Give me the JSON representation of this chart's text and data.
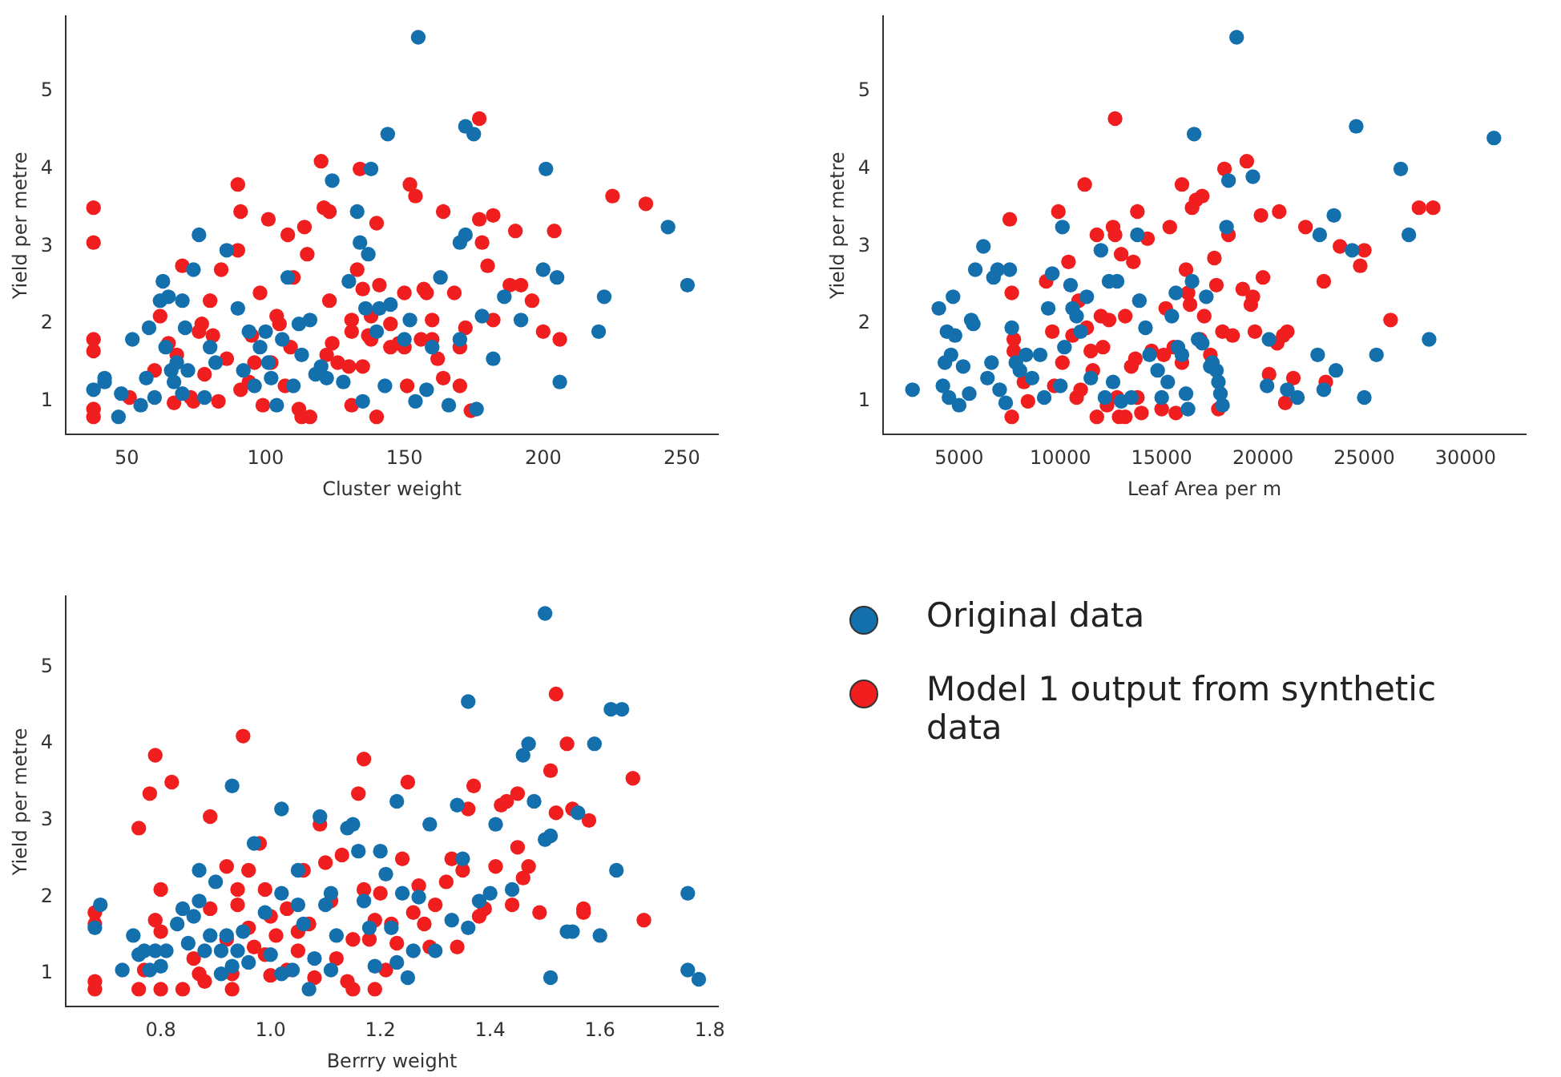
{
  "chart_data": [
    {
      "type": "scatter",
      "xlabel": "Cluster weight",
      "ylabel": "Yield per metre",
      "xlim": [
        28,
        263
      ],
      "xticks": [
        50,
        100,
        150,
        200,
        250
      ],
      "ylim": [
        0.57,
        5.97
      ],
      "yticks": [
        1,
        2,
        3,
        4,
        5
      ],
      "grid": false,
      "marker": "circle",
      "series": [
        {
          "color": "#1470ad",
          "x": [
            38,
            42,
            42,
            47,
            48,
            52,
            55,
            57,
            58,
            60,
            62,
            63,
            64,
            65,
            66,
            67,
            68,
            70,
            70,
            71,
            72,
            74,
            76,
            78,
            80,
            82,
            86,
            90,
            92,
            94,
            96,
            98,
            100,
            101,
            102,
            104,
            106,
            108,
            110,
            112,
            113,
            116,
            118,
            120,
            122,
            124,
            128,
            130,
            133,
            134,
            135,
            136,
            138,
            137,
            140,
            141,
            143,
            144,
            145,
            150,
            152,
            154,
            155,
            158,
            160,
            163,
            166,
            170,
            170,
            172,
            172,
            175,
            176,
            178,
            182,
            186,
            192,
            200,
            201,
            205,
            206,
            220,
            222,
            245,
            252
          ],
          "values": [
            1.15,
            1.3,
            1.25,
            0.8,
            1.1,
            1.8,
            0.95,
            1.3,
            1.95,
            1.05,
            2.3,
            2.55,
            1.7,
            2.35,
            1.4,
            1.25,
            1.5,
            1.1,
            2.3,
            1.95,
            1.4,
            2.7,
            3.15,
            1.05,
            1.7,
            1.5,
            2.95,
            2.2,
            1.4,
            1.9,
            1.2,
            1.7,
            1.9,
            1.5,
            1.3,
            0.95,
            1.8,
            2.6,
            1.2,
            2.0,
            1.6,
            2.05,
            1.35,
            1.45,
            1.3,
            3.85,
            1.25,
            2.55,
            3.45,
            3.05,
            1.0,
            2.2,
            4.0,
            2.9,
            1.9,
            2.2,
            1.2,
            4.45,
            2.25,
            1.8,
            2.05,
            1.0,
            5.7,
            1.15,
            1.7,
            2.6,
            0.95,
            3.05,
            1.8,
            3.15,
            4.55,
            4.45,
            0.9,
            2.1,
            1.55,
            2.35,
            2.05,
            2.7,
            4.0,
            2.6,
            1.25,
            1.9,
            2.35,
            3.25,
            2.5
          ]
        },
        {
          "color": "#f01e1e",
          "x": [
            38,
            38,
            38,
            38,
            38,
            38,
            51,
            60,
            62,
            65,
            67,
            68,
            70,
            73,
            74,
            76,
            77,
            78,
            80,
            81,
            83,
            84,
            86,
            90,
            91,
            90,
            91,
            94,
            95,
            96,
            98,
            99,
            101,
            102,
            104,
            105,
            107,
            108,
            110,
            109,
            112,
            113,
            114,
            115,
            116,
            120,
            121,
            122,
            123,
            123,
            124,
            126,
            130,
            131,
            131,
            131,
            133,
            134,
            135,
            135,
            137,
            138,
            140,
            138,
            140,
            141,
            145,
            145,
            148,
            150,
            150,
            151,
            152,
            154,
            156,
            157,
            158,
            160,
            160,
            162,
            164,
            164,
            168,
            170,
            170,
            172,
            174,
            177,
            177,
            178,
            180,
            182,
            182,
            188,
            190,
            192,
            196,
            200,
            204,
            206,
            225,
            237
          ],
          "values": [
            3.5,
            3.05,
            1.8,
            1.65,
            0.9,
            0.8,
            1.05,
            1.4,
            2.1,
            1.75,
            0.98,
            1.6,
            2.75,
            1.05,
            1.0,
            1.9,
            2.0,
            1.35,
            2.3,
            1.85,
            1.0,
            2.7,
            1.55,
            3.8,
            3.45,
            2.95,
            1.15,
            1.25,
            1.85,
            1.5,
            2.4,
            0.95,
            3.35,
            1.5,
            2.1,
            2.0,
            1.2,
            3.15,
            2.6,
            1.7,
            0.9,
            0.8,
            3.25,
            2.9,
            0.8,
            4.1,
            3.5,
            1.6,
            2.3,
            3.45,
            1.75,
            1.5,
            1.45,
            0.95,
            2.05,
            1.9,
            2.7,
            4.0,
            2.45,
            1.45,
            1.85,
            1.8,
            0.8,
            2.1,
            3.3,
            2.5,
            1.7,
            2.0,
            1.75,
            2.4,
            1.7,
            1.2,
            3.8,
            3.65,
            1.8,
            2.45,
            2.4,
            2.05,
            1.8,
            1.55,
            3.45,
            1.3,
            2.4,
            1.7,
            1.2,
            1.95,
            0.88,
            4.65,
            3.35,
            3.05,
            2.75,
            2.05,
            3.4,
            2.5,
            3.2,
            2.5,
            2.3,
            1.9,
            3.2,
            1.8,
            3.65,
            3.55
          ]
        }
      ]
    },
    {
      "type": "scatter",
      "xlabel": "Leaf Area per m",
      "ylabel": "Yield per metre",
      "xlim": [
        1250,
        32970
      ],
      "xticks": [
        5000,
        10000,
        15000,
        20000,
        25000,
        30000
      ],
      "ylim": [
        0.57,
        5.97
      ],
      "yticks": [
        1,
        2,
        3,
        4,
        5
      ],
      "grid": false,
      "marker": "circle",
      "series": [
        {
          "color": "#1470ad",
          "x": [
            2700,
            4000,
            4200,
            4300,
            4400,
            4500,
            4600,
            4700,
            4800,
            5000,
            5200,
            5500,
            5600,
            5700,
            5800,
            6200,
            6400,
            6600,
            6700,
            6900,
            7000,
            7300,
            7500,
            7600,
            7800,
            8000,
            8300,
            8600,
            9000,
            9200,
            9400,
            9600,
            10000,
            10100,
            10200,
            10500,
            10600,
            10800,
            11000,
            11300,
            11500,
            12000,
            12200,
            12400,
            12600,
            12800,
            13000,
            13500,
            13800,
            13900,
            14200,
            14400,
            14800,
            15000,
            15300,
            15500,
            15700,
            15800,
            16000,
            16200,
            16300,
            16500,
            16600,
            16800,
            17000,
            17200,
            17400,
            17500,
            17700,
            17800,
            17900,
            18000,
            18200,
            18300,
            18700,
            19500,
            20200,
            20300,
            21200,
            21700,
            22700,
            22800,
            23000,
            23500,
            23600,
            24400,
            24600,
            25000,
            25600,
            26800,
            27200,
            28200,
            31400
          ],
          "values": [
            1.15,
            2.2,
            1.2,
            1.5,
            1.9,
            1.05,
            1.6,
            2.35,
            1.85,
            0.95,
            1.45,
            1.1,
            2.05,
            2.0,
            2.7,
            3.0,
            1.3,
            1.5,
            2.6,
            2.7,
            1.15,
            0.98,
            2.7,
            1.95,
            1.5,
            1.4,
            1.6,
            1.3,
            1.6,
            1.05,
            2.2,
            2.65,
            1.2,
            3.25,
            1.7,
            2.5,
            2.2,
            2.1,
            1.9,
            2.35,
            1.3,
            2.95,
            1.05,
            2.55,
            1.25,
            2.55,
            1.0,
            1.05,
            3.15,
            2.3,
            1.95,
            1.6,
            1.4,
            1.05,
            1.25,
            2.1,
            2.4,
            1.7,
            1.6,
            1.1,
            0.9,
            2.55,
            4.45,
            1.8,
            1.75,
            2.35,
            1.45,
            1.5,
            1.4,
            1.25,
            1.1,
            0.95,
            3.25,
            3.85,
            5.7,
            3.9,
            1.2,
            1.8,
            1.15,
            1.05,
            1.6,
            3.15,
            1.15,
            3.4,
            1.4,
            2.95,
            4.55,
            1.05,
            1.6,
            4.0,
            3.15,
            1.8,
            4.4
          ]
        },
        {
          "color": "#f01e1e",
          "x": [
            7500,
            7600,
            7700,
            7600,
            7700,
            8200,
            8400,
            9300,
            9600,
            9700,
            9900,
            10100,
            10400,
            10600,
            10800,
            10900,
            11000,
            11200,
            11300,
            11500,
            11600,
            11800,
            11800,
            12000,
            12100,
            12300,
            12400,
            12600,
            12700,
            12700,
            12800,
            12900,
            13000,
            13200,
            13200,
            13500,
            13600,
            13700,
            13800,
            13800,
            14000,
            14300,
            14500,
            15000,
            15100,
            15200,
            15400,
            15600,
            15700,
            16000,
            16000,
            16200,
            16300,
            16400,
            16500,
            16700,
            16900,
            17000,
            17100,
            17400,
            17600,
            17700,
            17800,
            18000,
            18300,
            18100,
            18500,
            19000,
            19400,
            19200,
            19500,
            19600,
            19900,
            20000,
            20300,
            20700,
            20800,
            21000,
            21100,
            21200,
            21500,
            22100,
            23000,
            23100,
            23800,
            24800,
            25000,
            26300,
            27700,
            28400
          ],
          "values": [
            3.35,
            2.4,
            1.8,
            0.8,
            1.65,
            1.25,
            1.0,
            2.55,
            1.9,
            1.2,
            3.45,
            1.5,
            2.8,
            1.85,
            1.05,
            2.3,
            1.15,
            3.8,
            1.95,
            1.65,
            1.4,
            3.15,
            0.8,
            2.1,
            1.7,
            0.95,
            2.05,
            3.25,
            4.65,
            3.15,
            1.05,
            0.8,
            2.9,
            2.1,
            0.8,
            1.45,
            2.8,
            1.55,
            3.45,
            1.05,
            0.85,
            3.1,
            1.65,
            0.9,
            1.6,
            2.2,
            3.25,
            1.7,
            0.85,
            1.5,
            3.8,
            2.7,
            2.4,
            2.25,
            3.5,
            3.6,
            1.8,
            3.65,
            2.1,
            1.6,
            2.85,
            2.5,
            0.9,
            1.9,
            3.15,
            4.0,
            1.85,
            2.45,
            2.25,
            4.1,
            2.35,
            1.9,
            3.4,
            2.6,
            1.35,
            1.75,
            3.45,
            1.85,
            0.98,
            1.9,
            1.3,
            3.25,
            2.55,
            1.25,
            3.0,
            2.75,
            2.95,
            2.05,
            3.5,
            3.5
          ]
        }
      ]
    },
    {
      "type": "scatter",
      "xlabel": "Berrry weight",
      "ylabel": "Yield per metre",
      "xlim": [
        0.627,
        1.815
      ],
      "xticks": [
        {
          "value": 0.8,
          "label": "0.8"
        },
        {
          "value": 1.0,
          "label": "1.0"
        },
        {
          "value": 1.2,
          "label": "1.2"
        },
        {
          "value": 1.4,
          "label": "1.4"
        },
        {
          "value": 1.6,
          "label": "1.6"
        },
        {
          "value": 1.8,
          "label": "1.8"
        }
      ],
      "ylim": [
        0.57,
        5.92
      ],
      "yticks": [
        1,
        2,
        3,
        4,
        5
      ],
      "grid": false,
      "marker": "circle",
      "legend": "right",
      "series": [
        {
          "name": "Original data",
          "color": "#1470ad",
          "x": [
            0.68,
            0.69,
            0.73,
            0.75,
            0.76,
            0.77,
            0.78,
            0.79,
            0.8,
            0.81,
            0.83,
            0.84,
            0.85,
            0.86,
            0.87,
            0.87,
            0.88,
            0.89,
            0.9,
            0.91,
            0.91,
            0.92,
            0.93,
            0.93,
            0.94,
            0.95,
            0.96,
            0.97,
            0.99,
            1.0,
            1.02,
            1.02,
            1.02,
            1.04,
            1.05,
            1.05,
            1.06,
            1.07,
            1.08,
            1.09,
            1.1,
            1.11,
            1.11,
            1.12,
            1.14,
            1.15,
            1.16,
            1.17,
            1.18,
            1.19,
            1.2,
            1.21,
            1.22,
            1.23,
            1.23,
            1.24,
            1.25,
            1.26,
            1.27,
            1.29,
            1.3,
            1.33,
            1.34,
            1.35,
            1.36,
            1.36,
            1.38,
            1.4,
            1.41,
            1.44,
            1.46,
            1.47,
            1.48,
            1.5,
            1.5,
            1.51,
            1.51,
            1.54,
            1.55,
            1.56,
            1.59,
            1.6,
            1.62,
            1.63,
            1.64,
            1.76,
            1.76,
            1.78
          ],
          "values": [
            1.6,
            1.9,
            1.05,
            1.5,
            1.25,
            1.3,
            1.05,
            1.3,
            1.1,
            1.3,
            1.65,
            1.85,
            1.4,
            1.75,
            2.35,
            1.95,
            1.3,
            1.5,
            2.2,
            1.0,
            1.3,
            1.5,
            3.45,
            1.1,
            1.3,
            1.55,
            1.15,
            2.7,
            1.8,
            1.25,
            3.15,
            2.05,
            1.0,
            1.05,
            1.9,
            2.35,
            1.65,
            0.8,
            1.2,
            3.05,
            1.9,
            1.05,
            2.05,
            1.5,
            2.9,
            2.95,
            2.6,
            1.95,
            1.6,
            1.1,
            2.6,
            2.3,
            1.6,
            1.15,
            3.25,
            2.05,
            0.95,
            1.3,
            2.0,
            2.95,
            1.3,
            1.7,
            3.2,
            2.5,
            1.6,
            4.55,
            1.95,
            2.05,
            2.95,
            2.1,
            3.85,
            4.0,
            3.25,
            5.7,
            2.75,
            2.8,
            0.95,
            1.55,
            1.55,
            3.1,
            4.0,
            1.5,
            4.45,
            2.35,
            4.45,
            2.05,
            1.05,
            0.93
          ]
        },
        {
          "name": "Model 1 output from synthetic data",
          "color": "#f01e1e",
          "x": [
            0.68,
            0.68,
            0.68,
            0.68,
            0.76,
            0.76,
            0.77,
            0.78,
            0.79,
            0.79,
            0.8,
            0.8,
            0.8,
            0.82,
            0.84,
            0.86,
            0.87,
            0.88,
            0.89,
            0.89,
            0.92,
            0.92,
            0.93,
            0.93,
            0.94,
            0.94,
            0.95,
            0.96,
            0.96,
            0.97,
            0.98,
            0.99,
            0.99,
            1.0,
            1.0,
            1.01,
            1.03,
            1.03,
            1.05,
            1.05,
            1.06,
            1.07,
            1.08,
            1.09,
            1.1,
            1.11,
            1.12,
            1.13,
            1.14,
            1.15,
            1.15,
            1.16,
            1.17,
            1.17,
            1.18,
            1.19,
            1.19,
            1.2,
            1.21,
            1.22,
            1.23,
            1.24,
            1.25,
            1.26,
            1.27,
            1.28,
            1.29,
            1.3,
            1.32,
            1.33,
            1.34,
            1.35,
            1.36,
            1.37,
            1.38,
            1.39,
            1.41,
            1.42,
            1.43,
            1.44,
            1.45,
            1.45,
            1.46,
            1.47,
            1.49,
            1.51,
            1.52,
            1.52,
            1.54,
            1.55,
            1.57,
            1.57,
            1.58,
            1.66,
            1.68
          ],
          "values": [
            1.8,
            1.65,
            0.9,
            0.8,
            2.9,
            0.8,
            1.05,
            3.35,
            1.7,
            3.85,
            1.55,
            2.1,
            0.8,
            3.5,
            0.8,
            1.2,
            1.0,
            0.9,
            1.85,
            3.05,
            1.45,
            2.4,
            0.8,
            1.0,
            1.9,
            2.1,
            4.1,
            1.6,
            2.35,
            1.35,
            2.7,
            1.25,
            2.1,
            0.98,
            1.75,
            1.5,
            1.05,
            1.85,
            1.3,
            1.55,
            2.35,
            1.65,
            0.95,
            2.95,
            2.45,
            1.95,
            1.2,
            2.55,
            0.9,
            0.8,
            1.45,
            3.35,
            3.8,
            2.1,
            1.45,
            1.7,
            0.8,
            2.05,
            1.05,
            1.65,
            1.4,
            2.5,
            3.5,
            1.8,
            2.15,
            1.65,
            1.35,
            1.9,
            2.2,
            2.5,
            1.35,
            2.35,
            3.15,
            3.45,
            1.75,
            1.85,
            2.4,
            3.2,
            3.25,
            1.9,
            3.35,
            2.65,
            2.25,
            2.4,
            1.8,
            3.65,
            4.65,
            3.1,
            4.0,
            3.15,
            1.8,
            1.85,
            3.0,
            3.55,
            1.7
          ]
        }
      ]
    }
  ]
}
